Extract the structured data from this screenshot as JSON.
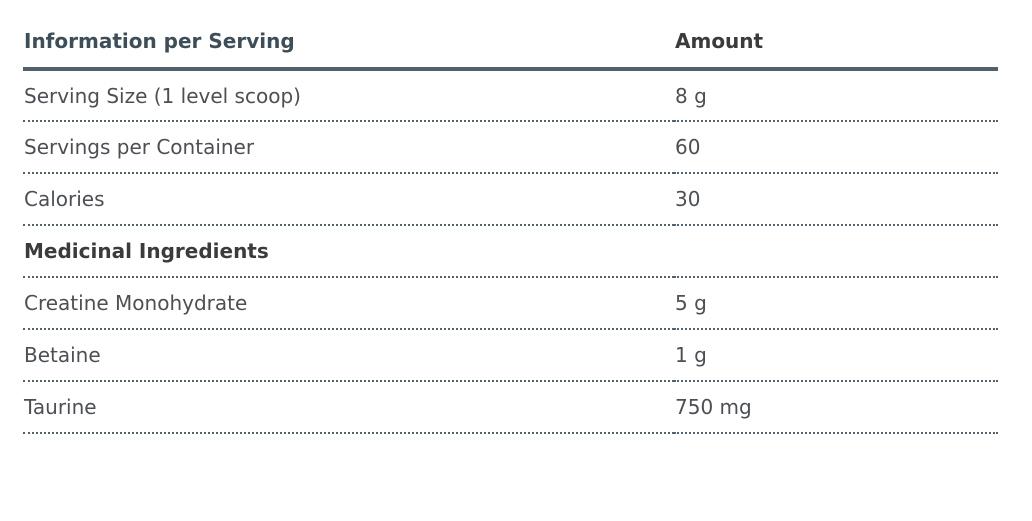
{
  "table": {
    "header": {
      "col1": "Information per Serving",
      "col2": "Amount"
    },
    "rows": [
      {
        "label": "Serving Size (1 level scoop)",
        "amount": "8 g"
      },
      {
        "label": "Servings per Container",
        "amount": "60"
      },
      {
        "label": "Calories",
        "amount": "30"
      },
      {
        "label": "Medicinal Ingredients",
        "amount": "",
        "section": true
      },
      {
        "label": "Creatine Monohydrate",
        "amount": "5 g"
      },
      {
        "label": "Betaine",
        "amount": "1 g"
      },
      {
        "label": "Taurine",
        "amount": "750 mg"
      }
    ]
  },
  "colors": {
    "header_left_text": "#3e4e58",
    "header_right_text": "#3b3b3b",
    "section_text": "#3b3b3b",
    "body_text": "#4c4f54",
    "solid_rule": "#53606b",
    "dotted_rule": "#55616b",
    "background": "#ffffff"
  }
}
